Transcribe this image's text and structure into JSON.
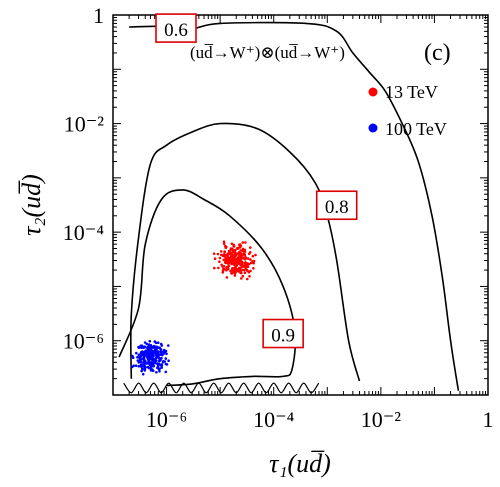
{
  "chart_data": {
    "type": "scatter",
    "panel_label": "(c)",
    "process_label": "(ud̅→W⁺)⊗(ud̅→W⁺)",
    "xlabel": "τ₁(ud̅)",
    "ylabel": "τ₂(ud̅)",
    "xscale": "log",
    "yscale": "log",
    "xlim": [
      1e-07,
      1
    ],
    "ylim": [
      1e-07,
      1
    ],
    "x_ticks": [
      {
        "value": 1e-06,
        "label": "10⁻⁶"
      },
      {
        "value": 0.0001,
        "label": "10⁻⁴"
      },
      {
        "value": 0.01,
        "label": "10⁻²"
      },
      {
        "value": 1,
        "label": "1"
      }
    ],
    "y_ticks": [
      {
        "value": 1e-06,
        "label": "10⁻⁶"
      },
      {
        "value": 0.0001,
        "label": "10⁻⁴"
      },
      {
        "value": 0.01,
        "label": "10⁻²"
      },
      {
        "value": 1,
        "label": "1"
      }
    ],
    "legend": [
      {
        "name": "13 TeV",
        "color": "#ff0000"
      },
      {
        "name": "100 TeV",
        "color": "#0000ff"
      }
    ],
    "series": [
      {
        "name": "13 TeV",
        "color": "#ff0000",
        "center": [
          2e-05,
          3e-05
        ],
        "spread_decades": [
          0.35,
          0.3
        ]
      },
      {
        "name": "100 TeV",
        "color": "#0000ff",
        "center": [
          5e-07,
          5e-07
        ],
        "spread_decades": [
          0.3,
          0.3
        ]
      }
    ],
    "contours": [
      {
        "label": "0.6",
        "label_at": [
          1.5e-06,
          0.55
        ],
        "points": [
          [
            2e-07,
            0.6
          ],
          [
            6e-07,
            0.62
          ],
          [
            1.8e-06,
            0.6
          ],
          [
            3e-06,
            0.55
          ],
          [
            1e-05,
            0.7
          ],
          [
            0.0004,
            0.7
          ],
          [
            0.0015,
            0.5
          ],
          [
            0.003,
            0.2
          ],
          [
            0.006,
            0.09
          ],
          [
            0.012,
            0.04
          ],
          [
            0.025,
            0.01
          ],
          [
            0.05,
            0.002
          ],
          [
            0.09,
            0.0002
          ],
          [
            0.14,
            1.5e-05
          ],
          [
            0.2,
            1e-06
          ],
          [
            0.28,
            1.2e-07
          ]
        ]
      },
      {
        "label": "0.8",
        "label_at": [
          0.0015,
          0.0003
        ],
        "points": [
          [
            2.2e-07,
            2e-07
          ],
          [
            2.2e-07,
            3e-06
          ],
          [
            3e-07,
            8e-05
          ],
          [
            5e-07,
            0.0018
          ],
          [
            1e-06,
            0.004
          ],
          [
            3e-06,
            0.007
          ],
          [
            1e-05,
            0.01
          ],
          [
            5e-05,
            0.008
          ],
          [
            0.0002,
            0.003
          ],
          [
            0.0006,
            0.0008
          ],
          [
            0.001,
            0.0002
          ],
          [
            0.0015,
            3e-05
          ],
          [
            0.0025,
            1e-06
          ],
          [
            0.004,
            1.8e-07
          ]
        ]
      },
      {
        "label": "0.9",
        "label_at": [
          0.00015,
          1.3e-06
        ],
        "points": [
          [
            1.3e-07,
            5e-07
          ],
          [
            3e-07,
            4e-06
          ],
          [
            4e-07,
            6e-05
          ],
          [
            8e-07,
            0.0004
          ],
          [
            2e-06,
            0.0006
          ],
          [
            5e-06,
            0.0004
          ],
          [
            1.5e-05,
            0.0002
          ],
          [
            6e-05,
            5e-05
          ],
          [
            0.00015,
            1e-05
          ],
          [
            0.00025,
            1.5e-06
          ],
          [
            0.00022,
            3e-07
          ],
          [
            0.00015,
            2.2e-07
          ],
          [
            4e-05,
            2.2e-07
          ],
          [
            1e-05,
            2e-07
          ],
          [
            3e-06,
            1.6e-07
          ],
          [
            1e-06,
            1.5e-07
          ]
        ]
      }
    ]
  }
}
